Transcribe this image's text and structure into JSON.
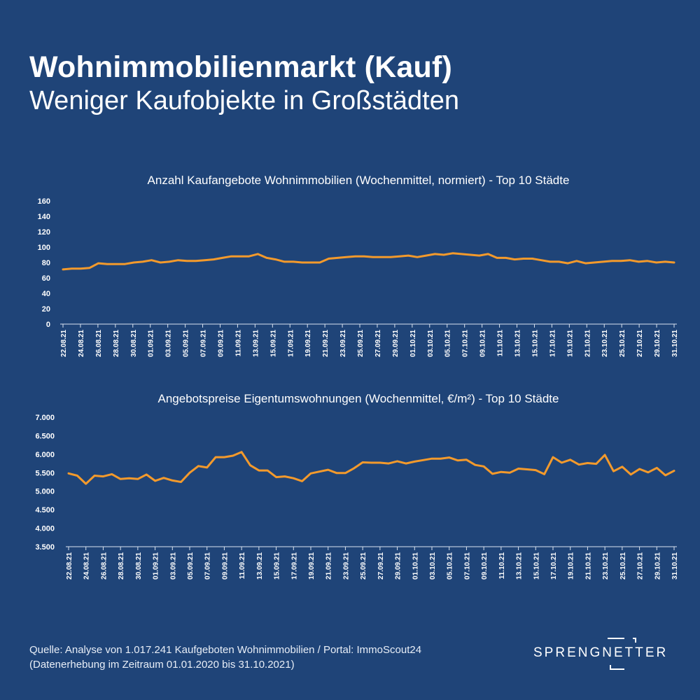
{
  "header": {
    "title": "Wohnimmobilienmarkt (Kauf)",
    "subtitle": "Weniger Kaufobjekte in Großstädten"
  },
  "footer": {
    "line1": "Quelle: Analyse von  1.017.241 Kaufgeboten Wohnimmobilien / Portal: ImmoScout24",
    "line2": "(Datenerhebung im Zeitraum  01.01.2020 bis  31.10.2021)"
  },
  "logo": {
    "text": "SPRENGNETTER"
  },
  "colors": {
    "background": "#1f4478",
    "line": "#f39a2c",
    "text": "#ffffff"
  },
  "chart_data": [
    {
      "type": "line",
      "title": "Anzahl Kaufangebote Wohnimmobilien (Wochenmittel, normiert) - Top 10 Städte",
      "ylim": [
        0,
        160
      ],
      "yticks": [
        0,
        20,
        40,
        60,
        80,
        100,
        120,
        140,
        160
      ],
      "ytick_labels": [
        "0",
        "20",
        "40",
        "60",
        "80",
        "100",
        "120",
        "140",
        "160"
      ],
      "xtick_labels": [
        "22.08.21",
        "24.08.21",
        "26.08.21",
        "28.08.21",
        "30.08.21",
        "01.09.21",
        "03.09.21",
        "05.09.21",
        "07.09.21",
        "09.09.21",
        "11.09.21",
        "13.09.21",
        "15.09.21",
        "17.09.21",
        "19.09.21",
        "21.09.21",
        "23.09.21",
        "25.09.21",
        "27.09.21",
        "29.09.21",
        "01.10.21",
        "03.10.21",
        "05.10.21",
        "07.10.21",
        "09.10.21",
        "11.10.21",
        "13.10.21",
        "15.10.21",
        "17.10.21",
        "19.10.21",
        "21.10.21",
        "23.10.21",
        "25.10.21",
        "27.10.21",
        "29.10.21",
        "31.10.21"
      ],
      "values": [
        71,
        72,
        72,
        73,
        79,
        78,
        78,
        78,
        80,
        81,
        83,
        80,
        81,
        83,
        82,
        82,
        83,
        84,
        86,
        88,
        88,
        88,
        91,
        86,
        84,
        81,
        81,
        80,
        80,
        80,
        85,
        86,
        87,
        88,
        88,
        87,
        87,
        87,
        88,
        89,
        87,
        89,
        91,
        90,
        92,
        91,
        90,
        89,
        91,
        86,
        86,
        84,
        85,
        85,
        83,
        81,
        81,
        79,
        82,
        79,
        80,
        81,
        82,
        82,
        83,
        81,
        82,
        80,
        81,
        80
      ]
    },
    {
      "type": "line",
      "title": "Angebotspreise Eigentumswohnungen (Wochenmittel, €/m²) - Top 10 Städte",
      "ylim": [
        3500,
        7000
      ],
      "yticks": [
        3500,
        4000,
        4500,
        5000,
        5500,
        6000,
        6500,
        7000
      ],
      "ytick_labels": [
        "3.500",
        "4.000",
        "4.500",
        "5.000",
        "5.500",
        "6.000",
        "6.500",
        "7.000"
      ],
      "xtick_labels": [
        "22.08.21",
        "24.08.21",
        "26.08.21",
        "28.08.21",
        "30.08.21",
        "01.09.21",
        "03.09.21",
        "05.09.21",
        "07.09.21",
        "09.09.21",
        "11.09.21",
        "13.09.21",
        "15.09.21",
        "17.09.21",
        "19.09.21",
        "21.09.21",
        "23.09.21",
        "25.09.21",
        "27.09.21",
        "29.09.21",
        "01.10.21",
        "03.10.21",
        "05.10.21",
        "07.10.21",
        "09.10.21",
        "11.10.21",
        "13.10.21",
        "15.10.21",
        "17.10.21",
        "19.10.21",
        "21.10.21",
        "23.10.21",
        "25.10.21",
        "27.10.21",
        "29.10.21",
        "31.10.21"
      ],
      "values": [
        5480,
        5420,
        5200,
        5420,
        5400,
        5460,
        5330,
        5350,
        5330,
        5450,
        5280,
        5360,
        5290,
        5250,
        5500,
        5680,
        5640,
        5920,
        5920,
        5960,
        6060,
        5700,
        5560,
        5560,
        5380,
        5400,
        5350,
        5270,
        5480,
        5530,
        5580,
        5490,
        5490,
        5620,
        5780,
        5770,
        5770,
        5750,
        5810,
        5750,
        5800,
        5840,
        5880,
        5880,
        5910,
        5830,
        5850,
        5710,
        5670,
        5470,
        5520,
        5500,
        5610,
        5590,
        5570,
        5460,
        5920,
        5770,
        5850,
        5720,
        5760,
        5740,
        5980,
        5540,
        5660,
        5450,
        5600,
        5510,
        5630,
        5430,
        5550
      ]
    }
  ]
}
